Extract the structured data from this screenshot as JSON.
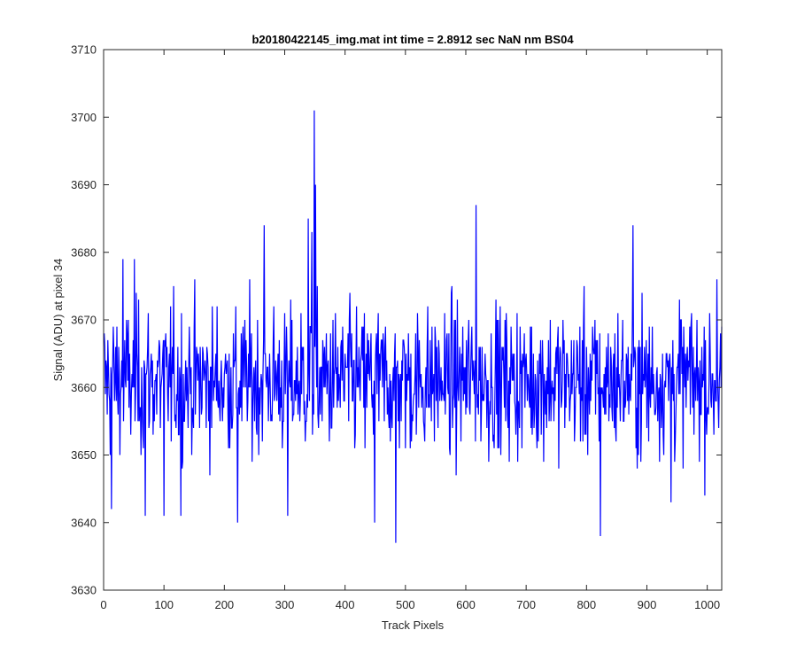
{
  "chart_data": {
    "type": "line",
    "title": "b20180422145_img.mat int time = 2.8912 sec  NaN nm BS04",
    "xlabel": "Track Pixels",
    "ylabel": "Signal (ADU) at pixel 34",
    "xlim": [
      0,
      1024
    ],
    "ylim": [
      3630,
      3710
    ],
    "xticks": [
      0,
      100,
      200,
      300,
      400,
      500,
      600,
      700,
      800,
      900,
      1000
    ],
    "yticks": [
      3630,
      3640,
      3650,
      3660,
      3670,
      3680,
      3690,
      3700,
      3710
    ],
    "grid": false,
    "box": true,
    "series": [
      {
        "color": "#0000ff",
        "n_points": 1024,
        "baseline": 3661,
        "noise_amplitude": 6,
        "spikes": [
          {
            "x": 13,
            "y": 3642
          },
          {
            "x": 32,
            "y": 3679
          },
          {
            "x": 51,
            "y": 3679
          },
          {
            "x": 69,
            "y": 3641
          },
          {
            "x": 100,
            "y": 3641
          },
          {
            "x": 128,
            "y": 3641
          },
          {
            "x": 222,
            "y": 3640
          },
          {
            "x": 266,
            "y": 3684
          },
          {
            "x": 305,
            "y": 3641
          },
          {
            "x": 339,
            "y": 3685
          },
          {
            "x": 345,
            "y": 3683
          },
          {
            "x": 349,
            "y": 3701
          },
          {
            "x": 351,
            "y": 3690
          },
          {
            "x": 449,
            "y": 3640
          },
          {
            "x": 484,
            "y": 3637
          },
          {
            "x": 617,
            "y": 3687
          },
          {
            "x": 823,
            "y": 3638
          },
          {
            "x": 877,
            "y": 3684
          },
          {
            "x": 940,
            "y": 3643
          },
          {
            "x": 1016,
            "y": 3676
          }
        ]
      }
    ]
  }
}
